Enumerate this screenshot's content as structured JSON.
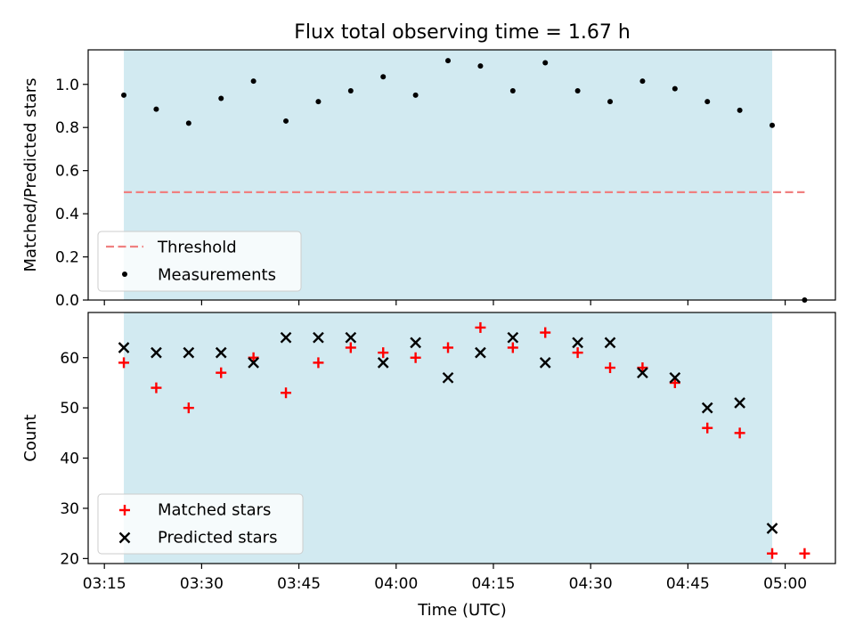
{
  "figure": {
    "title": "Flux total observing time = 1.67 h",
    "xlabel": "Time (UTC)"
  },
  "colors": {
    "shade": "#add8e6",
    "threshold": "#f08080",
    "matched": "#ff0000",
    "predicted": "#000000",
    "points": "#000000"
  },
  "chart_data": [
    {
      "type": "scatter",
      "ylabel": "Matched/Predicted stars",
      "ylim": [
        0,
        1.16
      ],
      "yticks": [
        0.0,
        0.2,
        0.4,
        0.6,
        0.8,
        1.0
      ],
      "xlim": [
        "03:12:30",
        "05:07:45"
      ],
      "xticks": [
        "03:15",
        "03:30",
        "03:45",
        "04:00",
        "04:15",
        "04:30",
        "04:45",
        "05:00"
      ],
      "shaded_span": [
        "03:18",
        "04:58"
      ],
      "legend": "lower-left",
      "grid": false,
      "series": [
        {
          "name": "Threshold",
          "style": "dashed-line",
          "x": [
            "03:18",
            "05:03"
          ],
          "y": [
            0.5,
            0.5
          ]
        },
        {
          "name": "Measurements",
          "style": "dots",
          "x": [
            "03:18",
            "03:23",
            "03:28",
            "03:33",
            "03:38",
            "03:43",
            "03:48",
            "03:53",
            "03:58",
            "04:03",
            "04:08",
            "04:13",
            "04:18",
            "04:23",
            "04:28",
            "04:33",
            "04:38",
            "04:43",
            "04:48",
            "04:53",
            "04:58",
            "05:03"
          ],
          "y": [
            0.95,
            0.885,
            0.82,
            0.935,
            1.015,
            0.83,
            0.92,
            0.97,
            1.035,
            0.95,
            1.11,
            1.085,
            0.97,
            1.1,
            0.97,
            0.92,
            1.015,
            0.98,
            0.92,
            0.88,
            0.81,
            0.0
          ]
        }
      ]
    },
    {
      "type": "scatter",
      "ylabel": "Count",
      "ylim": [
        19,
        69
      ],
      "yticks": [
        20,
        30,
        40,
        50,
        60
      ],
      "xlim": [
        "03:12:30",
        "05:07:45"
      ],
      "xticks": [
        "03:15",
        "03:30",
        "03:45",
        "04:00",
        "04:15",
        "04:30",
        "04:45",
        "05:00"
      ],
      "shaded_span": [
        "03:18",
        "04:58"
      ],
      "legend": "lower-left",
      "grid": false,
      "series": [
        {
          "name": "Matched stars",
          "style": "plus",
          "x": [
            "03:18",
            "03:23",
            "03:28",
            "03:33",
            "03:38",
            "03:43",
            "03:48",
            "03:53",
            "03:58",
            "04:03",
            "04:08",
            "04:13",
            "04:18",
            "04:23",
            "04:28",
            "04:33",
            "04:38",
            "04:43",
            "04:48",
            "04:53",
            "04:58",
            "05:03"
          ],
          "y": [
            59,
            54,
            50,
            57,
            60,
            53,
            59,
            62,
            61,
            60,
            62,
            66,
            62,
            65,
            61,
            58,
            58,
            55,
            46,
            45,
            21,
            21
          ]
        },
        {
          "name": "Predicted stars",
          "style": "cross",
          "x": [
            "03:18",
            "03:23",
            "03:28",
            "03:33",
            "03:38",
            "03:43",
            "03:48",
            "03:53",
            "03:58",
            "04:03",
            "04:08",
            "04:13",
            "04:18",
            "04:23",
            "04:28",
            "04:33",
            "04:38",
            "04:43",
            "04:48",
            "04:53",
            "04:58"
          ],
          "y": [
            62,
            61,
            61,
            61,
            59,
            64,
            64,
            64,
            59,
            63,
            56,
            61,
            64,
            59,
            63,
            63,
            57,
            56,
            50,
            51,
            26
          ]
        }
      ]
    }
  ]
}
